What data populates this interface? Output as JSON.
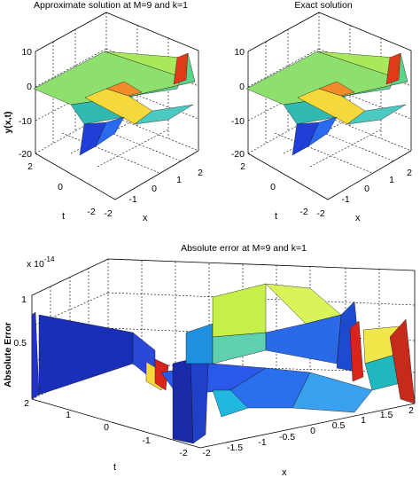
{
  "chart_data": [
    {
      "type": "surface",
      "title": "Approximate solution at M=9 and k=1",
      "xlabel": "x",
      "ylabel": "t",
      "zlabel": "y(x,t)",
      "xticks": [
        "-2",
        "-1",
        "0",
        "1",
        "2"
      ],
      "yticks": [
        "-2",
        "0",
        "2"
      ],
      "zticks": [
        "10",
        "0",
        "-10",
        "-20"
      ],
      "xlim": [
        -2,
        2
      ],
      "ylim": [
        -2,
        2
      ],
      "zlim": [
        -20,
        10
      ],
      "grid": true
    },
    {
      "type": "surface",
      "title": "Exact solution",
      "xlabel": "x",
      "ylabel": "t",
      "zlabel": "",
      "xticks": [
        "-2",
        "-1",
        "0",
        "1",
        "2"
      ],
      "yticks": [
        "-2",
        "0",
        "2"
      ],
      "zticks": [
        "10",
        "0",
        "-10",
        "-20"
      ],
      "xlim": [
        -2,
        2
      ],
      "ylim": [
        -2,
        2
      ],
      "zlim": [
        -20,
        10
      ],
      "grid": true
    },
    {
      "type": "surface",
      "title": "Absolute error at M=9 and k=1",
      "exponent_label": "x 10",
      "exponent": "-14",
      "xlabel": "x",
      "ylabel": "t",
      "zlabel": "Absolute Error",
      "xticks": [
        "-2",
        "-1.5",
        "-1",
        "-0.5",
        "0",
        "0.5",
        "1",
        "1.5",
        "2"
      ],
      "yticks": [
        "-2",
        "-1",
        "0",
        "1",
        "2"
      ],
      "zticks": [
        "1",
        "0.5"
      ],
      "xlim": [
        -2,
        2
      ],
      "ylim": [
        -2,
        2
      ],
      "zlim": [
        0,
        1.2
      ],
      "grid": true
    }
  ]
}
